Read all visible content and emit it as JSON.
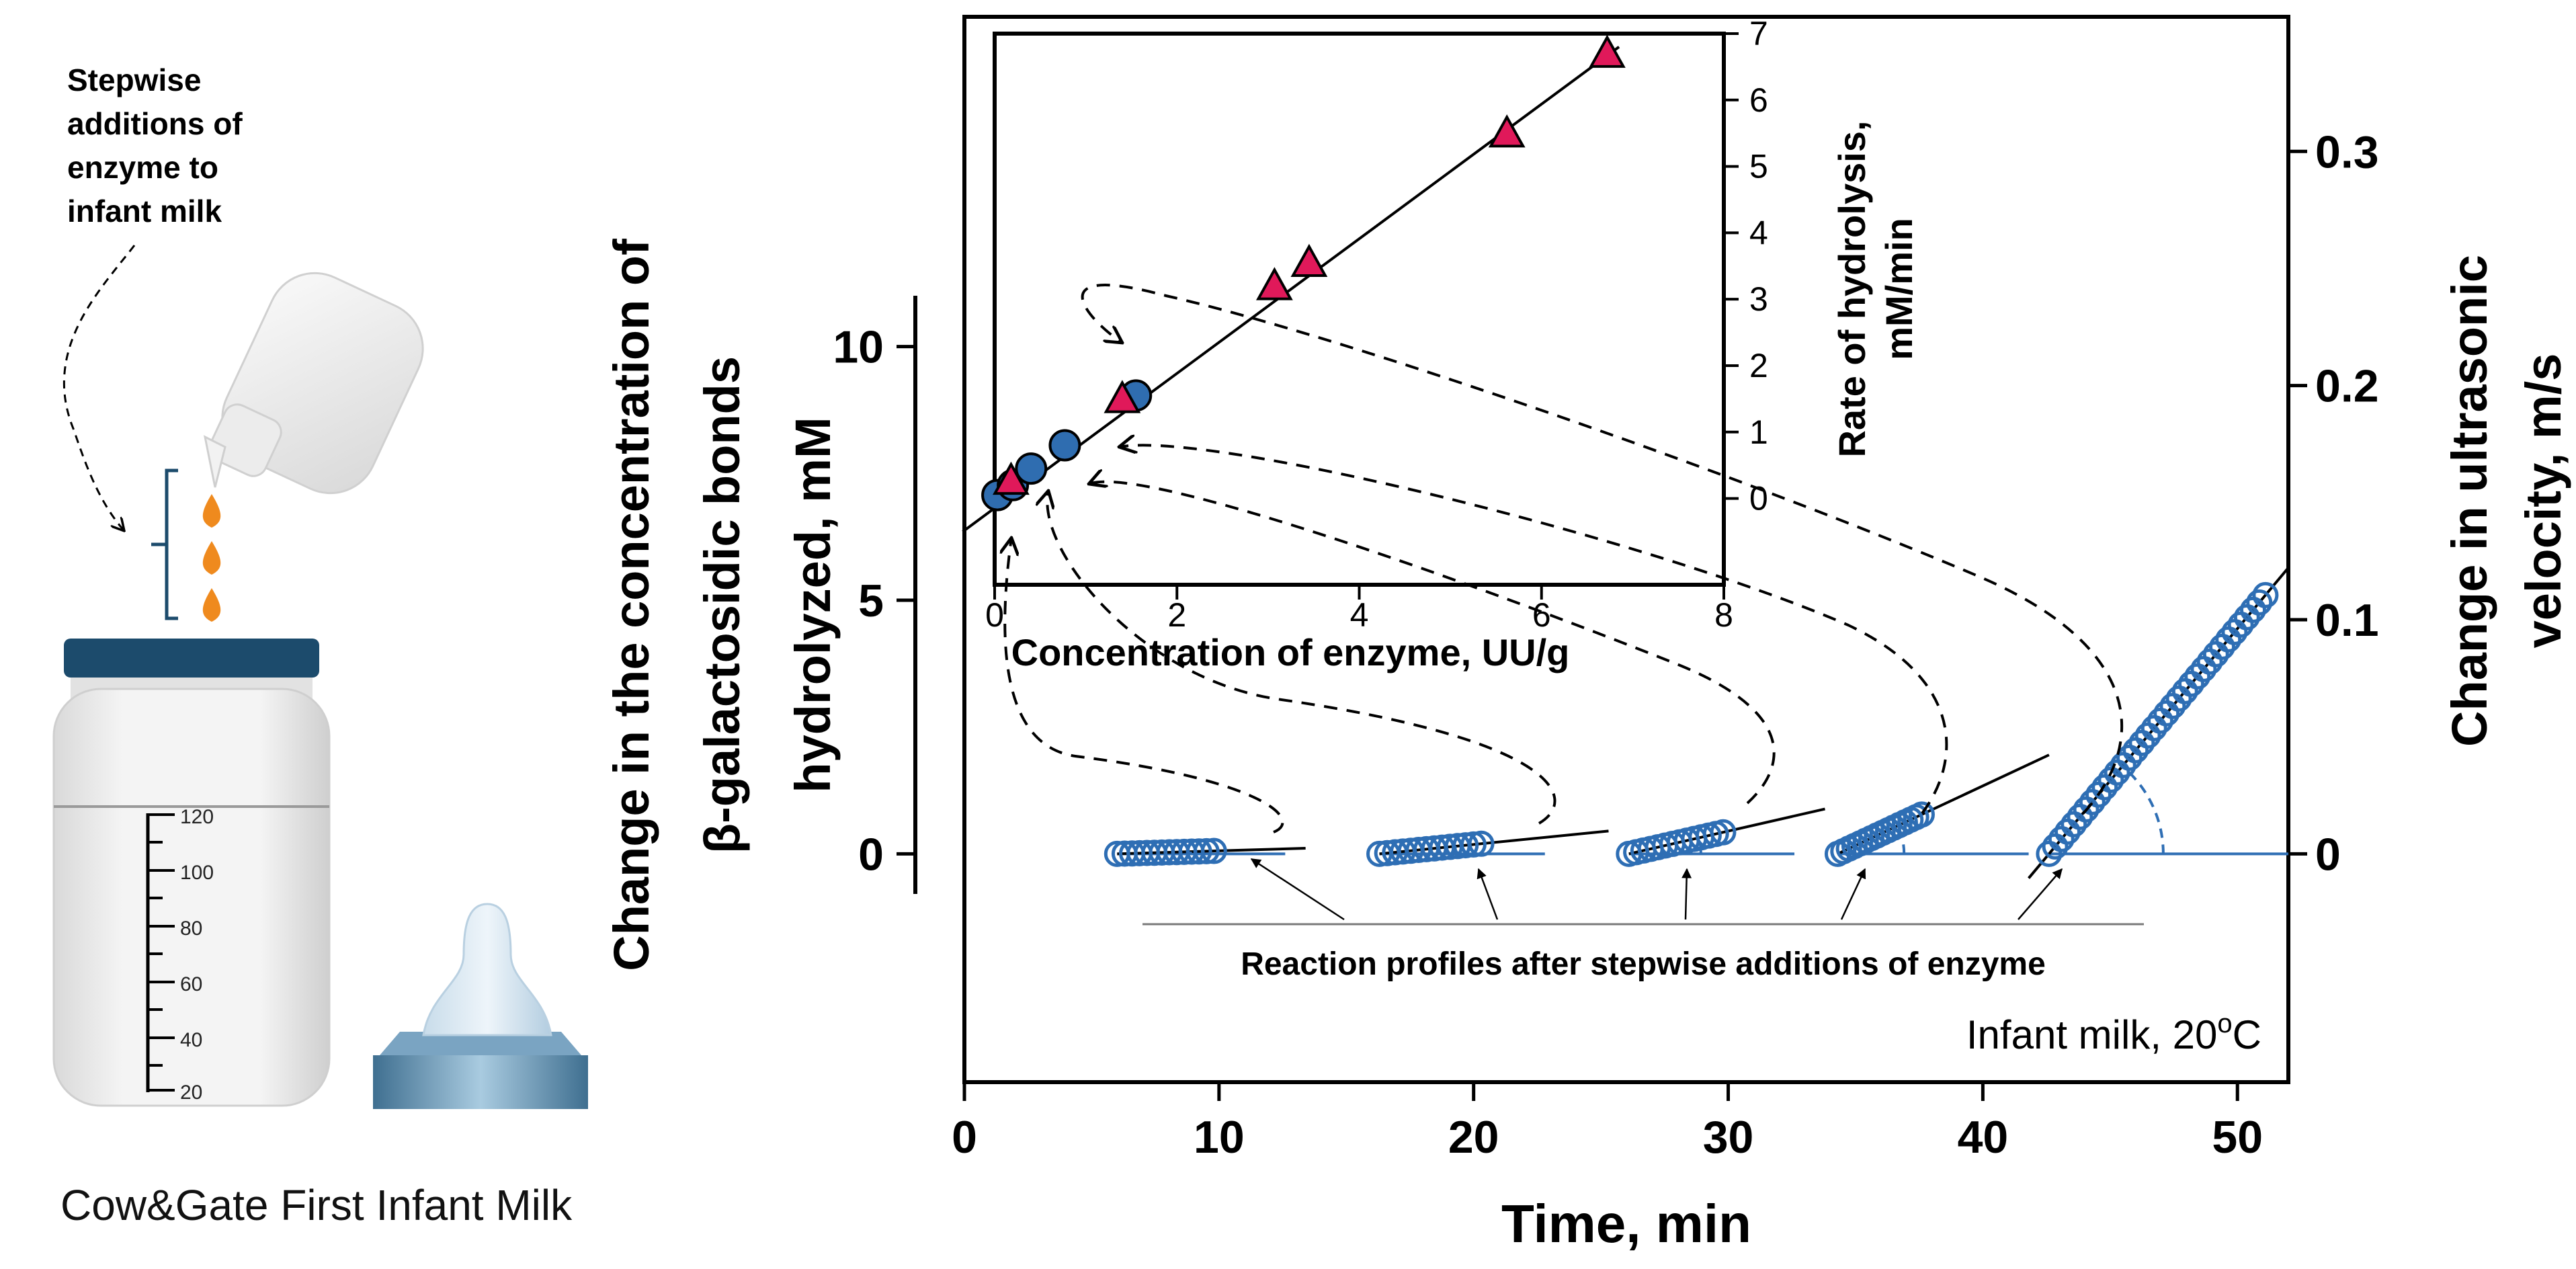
{
  "illustration": {
    "note_lines": [
      "Stepwise",
      "additions of",
      "enzyme to",
      "infant milk"
    ],
    "bottle_scale_labels": [
      "120",
      "100",
      "80",
      "60",
      "40",
      "20"
    ],
    "product_caption": "Cow&Gate First Infant Milk"
  },
  "colors": {
    "circle_blue": "#2e6eb4",
    "fill_blue": "#2f6db0",
    "triangle_red": "#e0195a",
    "drop_orange": "#ef8a1e",
    "cap_navy": "#1c4b6c",
    "axis": "#000000"
  },
  "chart_data": [
    {
      "id": "main",
      "type": "scatter",
      "title": "",
      "xlabel": "Time, min",
      "ylabel_left_lines": [
        "Change in the concentration of",
        "β-galactosidic bonds",
        "hydrolyzed, mM"
      ],
      "ylabel_right_lines": [
        "Change in ultrasonic",
        "velocity, m/s"
      ],
      "xlim": [
        0,
        52
      ],
      "ylim_left": [
        -4.5,
        16.5
      ],
      "ylim_right": [
        -0.0975,
        0.3575
      ],
      "xticks": [
        "0",
        "10",
        "20",
        "30",
        "40",
        "50"
      ],
      "yticks_left": [
        "0",
        "5",
        "10"
      ],
      "yticks_right": [
        "0",
        "0.1",
        "0.2",
        "0.3"
      ],
      "annotation": "Reaction profiles after stepwise additions of enzyme",
      "condition_label": "Infant milk, 20",
      "condition_superscript": "o",
      "condition_unit": "C",
      "series": [
        {
          "name": "addition 1",
          "t_start": 6,
          "t_end": 9.8,
          "n_points": 14,
          "slope_per_min": 0.015,
          "line_t_end": 13.4,
          "baseline_t_end": 12.6
        },
        {
          "name": "addition 2",
          "t_start": 16.3,
          "t_end": 20.3,
          "n_points": 14,
          "slope_per_min": 0.05,
          "line_t_end": 25.3,
          "baseline_t_end": 22.8
        },
        {
          "name": "addition 3",
          "t_start": 26.1,
          "t_end": 29.8,
          "n_points": 14,
          "slope_per_min": 0.115,
          "line_t_end": 33.8,
          "baseline_t_end": 32.6
        },
        {
          "name": "addition 4",
          "t_start": 34.3,
          "t_end": 37.6,
          "n_points": 16,
          "slope_per_min": 0.235,
          "line_t_end": 42.6,
          "baseline_t_end": 41.8
        },
        {
          "name": "addition 5",
          "t_start": 42.6,
          "t_end": 51.1,
          "n_points": 36,
          "slope_per_min": 0.6,
          "line_t_start": 41.8,
          "line_t_end": 52.0,
          "baseline_t_end": 52.0
        }
      ]
    },
    {
      "id": "inset",
      "type": "scatter",
      "xlabel": "Concentration of enzyme, UU/g",
      "ylabel_lines": [
        "Rate of hydrolysis,",
        "mM/min"
      ],
      "xlim": [
        0,
        8
      ],
      "ylim": [
        -1.3,
        7
      ],
      "xticks": [
        "0",
        "2",
        "4",
        "6",
        "8"
      ],
      "yticks": [
        "0",
        "1",
        "2",
        "3",
        "4",
        "5",
        "6",
        "7"
      ],
      "fit_line": {
        "x": [
          -0.35,
          6.85
        ],
        "y": [
          -0.5,
          6.8
        ]
      },
      "series": [
        {
          "name": "circles",
          "marker": "circle",
          "x": [
            0.03,
            0.2,
            0.4,
            0.77,
            1.55
          ],
          "y": [
            0.05,
            0.2,
            0.45,
            0.8,
            1.55
          ]
        },
        {
          "name": "triangles",
          "marker": "triangle",
          "x": [
            0.18,
            1.4,
            3.07,
            3.45,
            5.62,
            6.72
          ],
          "y": [
            0.27,
            1.5,
            3.2,
            3.55,
            5.5,
            6.7
          ]
        }
      ]
    }
  ]
}
